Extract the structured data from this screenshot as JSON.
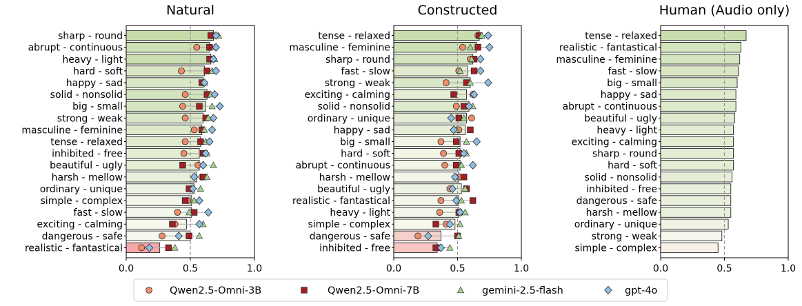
{
  "chart_data": [
    {
      "type": "bar",
      "orientation": "horizontal",
      "title": "Natural",
      "xlim": [
        0.0,
        1.0
      ],
      "xticks": [
        "0.0",
        "0.5",
        "1.0"
      ],
      "reference_line": 0.5,
      "categories": [
        "sharp - round",
        "abrupt - continuous",
        "heavy - light",
        "hard - soft",
        "happy - sad",
        "solid - nonsolid",
        "big - small",
        "strong - weak",
        "masculine - feminine",
        "tense - relaxed",
        "inhibited - free",
        "beautiful - ugly",
        "harsh - mellow",
        "ordinary - unique",
        "simple - complex",
        "fast - slow",
        "exciting - calming",
        "dangerous - safe",
        "realistic - fantastical"
      ],
      "bar_values": [
        0.68,
        0.65,
        0.66,
        0.61,
        0.6,
        0.63,
        0.62,
        0.6,
        0.59,
        0.58,
        0.57,
        0.57,
        0.55,
        0.53,
        0.51,
        0.51,
        0.47,
        0.5,
        0.26
      ],
      "series": [
        {
          "name": "Qwen2.5-Omni-3B",
          "values": [
            0.67,
            0.55,
            0.66,
            0.43,
            0.6,
            0.46,
            0.44,
            0.46,
            0.53,
            0.46,
            0.45,
            0.56,
            0.59,
            0.51,
            0.48,
            0.4,
            0.38,
            0.28,
            0.12
          ]
        },
        {
          "name": "Qwen2.5-Omni-7B",
          "values": [
            0.66,
            0.65,
            0.65,
            0.63,
            0.59,
            0.63,
            0.57,
            0.62,
            0.59,
            0.58,
            0.6,
            0.44,
            0.6,
            0.49,
            0.46,
            0.53,
            0.36,
            0.49,
            0.33
          ]
        },
        {
          "name": "gemini-2.5-flash",
          "values": [
            0.72,
            0.69,
            0.69,
            0.67,
            0.61,
            0.66,
            0.67,
            0.64,
            0.61,
            0.62,
            0.63,
            0.68,
            0.63,
            0.58,
            0.53,
            0.49,
            0.6,
            0.57,
            0.38
          ]
        },
        {
          "name": "gpt-4o",
          "values": [
            0.7,
            0.7,
            0.68,
            0.7,
            0.61,
            0.69,
            0.73,
            0.68,
            0.67,
            0.65,
            0.62,
            0.6,
            0.53,
            0.52,
            0.57,
            0.64,
            0.57,
            0.41,
            0.18
          ]
        }
      ]
    },
    {
      "type": "bar",
      "orientation": "horizontal",
      "title": "Constructed",
      "xlim": [
        0.0,
        1.0
      ],
      "xticks": [
        "0.0",
        "0.5",
        "1.0"
      ],
      "reference_line": 0.5,
      "categories": [
        "tense - relaxed",
        "masculine - feminine",
        "sharp - round",
        "fast - slow",
        "strong - weak",
        "exciting - calming",
        "solid - nonsolid",
        "ordinary - unique",
        "happy - sad",
        "big - small",
        "hard - soft",
        "abrupt - continuous",
        "harsh - mellow",
        "beautiful - ugly",
        "realistic - fantastical",
        "heavy - light",
        "simple - complex",
        "dangerous - safe",
        "inhibited - free"
      ],
      "bar_values": [
        0.67,
        0.65,
        0.62,
        0.58,
        0.6,
        0.57,
        0.59,
        0.57,
        0.56,
        0.52,
        0.52,
        0.52,
        0.51,
        0.53,
        0.51,
        0.51,
        0.48,
        0.37,
        0.34
      ],
      "series": [
        {
          "name": "Qwen2.5-Omni-3B",
          "values": [
            0.66,
            0.54,
            0.6,
            0.51,
            0.41,
            0.62,
            0.49,
            0.61,
            0.51,
            0.37,
            0.39,
            0.4,
            0.52,
            0.44,
            0.37,
            0.36,
            0.41,
            0.19,
            0.35
          ]
        },
        {
          "name": "Qwen2.5-Omni-7B",
          "values": [
            0.67,
            0.66,
            0.63,
            0.63,
            0.57,
            0.47,
            0.55,
            0.51,
            0.6,
            0.49,
            0.51,
            0.49,
            0.55,
            0.57,
            0.62,
            0.51,
            0.33,
            0.5,
            0.33
          ]
        },
        {
          "name": "gemini-2.5-flash",
          "values": [
            0.69,
            0.6,
            0.61,
            0.52,
            0.6,
            0.62,
            0.62,
            0.55,
            0.49,
            0.57,
            0.57,
            0.53,
            0.49,
            0.56,
            0.53,
            0.56,
            0.52,
            0.51,
            0.44
          ]
        },
        {
          "name": "gpt-4o",
          "values": [
            0.74,
            0.75,
            0.68,
            0.68,
            0.74,
            0.63,
            0.59,
            0.45,
            0.47,
            0.65,
            0.55,
            0.62,
            0.48,
            0.46,
            0.49,
            0.52,
            0.44,
            0.27,
            0.37
          ]
        }
      ]
    },
    {
      "type": "bar",
      "orientation": "horizontal",
      "title": "Human (Audio only)",
      "xlim": [
        0.0,
        1.0
      ],
      "xticks": [
        "0.0",
        "0.5",
        "1.0"
      ],
      "reference_line": 0.5,
      "categories": [
        "tense - relaxed",
        "realistic - fantastical",
        "masculine - feminine",
        "fast - slow",
        "big - small",
        "happy - sad",
        "abrupt - continuous",
        "beautiful - ugly",
        "heavy - light",
        "exciting - calming",
        "sharp - round",
        "hard - soft",
        "solid - nonsolid",
        "inhibited - free",
        "dangerous - safe",
        "harsh - mellow",
        "ordinary - unique",
        "strong - weak",
        "simple - complex"
      ],
      "bar_values": [
        0.67,
        0.63,
        0.62,
        0.61,
        0.6,
        0.59,
        0.59,
        0.58,
        0.57,
        0.57,
        0.57,
        0.57,
        0.56,
        0.55,
        0.55,
        0.55,
        0.53,
        0.48,
        0.45
      ],
      "series": []
    }
  ],
  "legend": [
    {
      "name": "Qwen2.5-Omni-3B",
      "marker": "circle",
      "color": "#f08c6a"
    },
    {
      "name": "Qwen2.5-Omni-7B",
      "marker": "square",
      "color": "#a31f24"
    },
    {
      "name": "gemini-2.5-flash",
      "marker": "triangle",
      "color": "#a3d191"
    },
    {
      "name": "gpt-4o",
      "marker": "diamond",
      "color": "#8fbde0"
    }
  ],
  "colors": {
    "high": "#c6dbaa",
    "mid": "#f6f8ee",
    "low": "#f4a7a7",
    "refline": "#999999"
  }
}
